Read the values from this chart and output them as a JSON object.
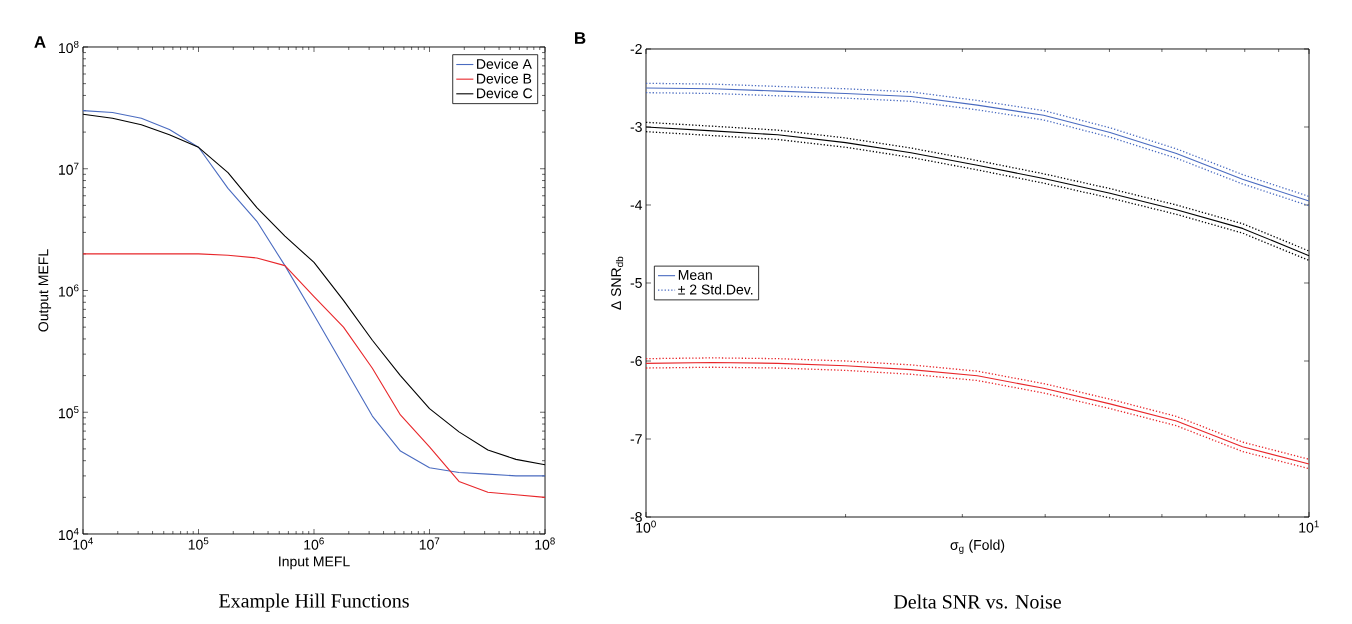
{
  "chart_data": [
    {
      "type": "line",
      "title": "Example Hill Functions",
      "xlabel": "Input MEFL",
      "ylabel": "Output MEFL",
      "log": "xy",
      "legend": "top right",
      "marker": "none",
      "line_style": "solid",
      "annotations": [
        "A"
      ],
      "xlim": [
        10000,
        100000000
      ],
      "ylim": [
        10000,
        100000000
      ],
      "xticks": [
        {
          "value": 10000,
          "label": "10$^{4}$"
        },
        {
          "value": 100000,
          "label": "10$^{5}$"
        },
        {
          "value": 1000000,
          "label": "10$^{6}$"
        },
        {
          "value": 10000000,
          "label": "10$^{7}$"
        },
        {
          "value": 100000000,
          "label": "10$^{8}$"
        }
      ],
      "yticks": [
        {
          "value": 10000,
          "label": "10$^{4}$"
        },
        {
          "value": 100000,
          "label": "10$^{5}$"
        },
        {
          "value": 1000000,
          "label": "10$^{6}$"
        },
        {
          "value": 10000000,
          "label": "10$^{7}$"
        },
        {
          "value": 100000000,
          "label": "10$^{8}$"
        }
      ],
      "x": [
        10000,
        18000,
        32000,
        56000,
        100000,
        180000,
        320000,
        560000,
        1000000,
        1800000,
        3200000,
        5600000,
        10000000,
        18000000,
        32000000,
        56000000,
        100000000
      ],
      "series": [
        {
          "name": "Device A",
          "color": "#4a6bc0",
          "values": [
            30000000,
            29000000,
            26000000,
            21000000,
            15000000,
            6900000,
            3700000,
            1600000,
            630000,
            240000,
            93000,
            48000,
            35000,
            32000,
            31000,
            30000,
            30000
          ]
        },
        {
          "name": "Device B",
          "color": "#e8262a",
          "values": [
            2000000,
            2000000,
            2000000,
            2000000,
            2000000,
            1950000,
            1850000,
            1600000,
            890000,
            500000,
            230000,
            95000,
            52000,
            27000,
            22000,
            21000,
            20000
          ]
        },
        {
          "name": "Device C",
          "color": "#000000",
          "values": [
            28000000,
            26000000,
            23000000,
            19000000,
            15000000,
            9300000,
            4800000,
            2800000,
            1700000,
            830000,
            390000,
            200000,
            107000,
            69000,
            49000,
            41000,
            37000
          ]
        }
      ]
    },
    {
      "type": "line",
      "title": "Delta SNR vs. Noise",
      "xlabel": "σ$_{g}$ (Fold)",
      "ylabel": "Δ SNR$_{db}$",
      "log": "x",
      "legend": "left",
      "marker": "none",
      "annotations": [
        "B"
      ],
      "xlim": [
        1,
        10
      ],
      "ylim": [
        -8,
        -2
      ],
      "xticks": [
        {
          "value": 1,
          "label": "10$^{0}$"
        },
        {
          "value": 10,
          "label": "10$^{1}$"
        }
      ],
      "yticks": [
        -8,
        -7,
        -6,
        -5,
        -4,
        -3,
        -2
      ],
      "x": [
        1,
        1.26,
        1.58,
        2.0,
        2.51,
        3.16,
        3.98,
        5.01,
        6.31,
        7.94,
        10
      ],
      "series": [
        {
          "name": "Mean",
          "color": "#4a6bc0",
          "line_style": "solid",
          "values": [
            -2.5,
            -2.51,
            -2.54,
            -2.57,
            -2.61,
            -2.72,
            -2.85,
            -3.07,
            -3.34,
            -3.67,
            -3.95
          ]
        },
        {
          "name": "± 2 Std.Dev.",
          "color": "#4a6bc0",
          "line_style": "dotted",
          "values": [
            -2.44,
            -2.45,
            -2.48,
            -2.51,
            -2.55,
            -2.66,
            -2.79,
            -3.01,
            -3.28,
            -3.61,
            -3.89
          ]
        },
        {
          "color": "#4a6bc0",
          "line_style": "dotted",
          "values": [
            -2.56,
            -2.57,
            -2.6,
            -2.63,
            -2.67,
            -2.78,
            -2.91,
            -3.13,
            -3.4,
            -3.73,
            -4.01
          ]
        },
        {
          "color": "#000000",
          "line_style": "solid",
          "values": [
            -3.0,
            -3.05,
            -3.1,
            -3.2,
            -3.33,
            -3.49,
            -3.66,
            -3.85,
            -4.06,
            -4.3,
            -4.65
          ]
        },
        {
          "color": "#000000",
          "line_style": "dotted",
          "values": [
            -2.94,
            -2.99,
            -3.04,
            -3.14,
            -3.27,
            -3.43,
            -3.6,
            -3.79,
            -4.0,
            -4.24,
            -4.59
          ]
        },
        {
          "color": "#000000",
          "line_style": "dotted",
          "values": [
            -3.06,
            -3.11,
            -3.16,
            -3.26,
            -3.39,
            -3.55,
            -3.72,
            -3.91,
            -4.12,
            -4.36,
            -4.71
          ]
        },
        {
          "color": "#e8262a",
          "line_style": "solid",
          "values": [
            -6.03,
            -6.02,
            -6.03,
            -6.06,
            -6.11,
            -6.19,
            -6.35,
            -6.55,
            -6.77,
            -7.1,
            -7.32
          ]
        },
        {
          "color": "#e8262a",
          "line_style": "dotted",
          "values": [
            -5.97,
            -5.96,
            -5.97,
            -6.0,
            -6.05,
            -6.13,
            -6.29,
            -6.49,
            -6.71,
            -7.04,
            -7.26
          ]
        },
        {
          "color": "#e8262a",
          "line_style": "dotted",
          "values": [
            -6.09,
            -6.08,
            -6.09,
            -6.12,
            -6.17,
            -6.25,
            -6.41,
            -6.61,
            -6.83,
            -7.16,
            -7.38
          ]
        }
      ]
    }
  ]
}
